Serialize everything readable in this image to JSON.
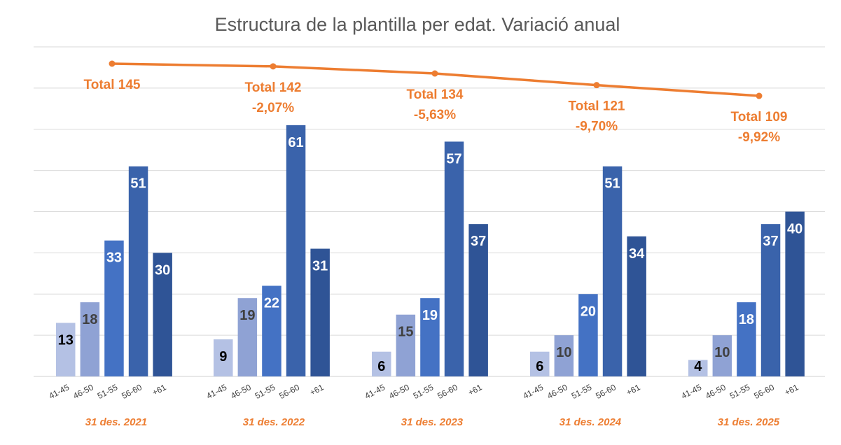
{
  "chart_data": {
    "type": "bar",
    "title": "Estructura de la plantilla per edat. Variació anual",
    "groups": [
      "31 des. 2021",
      "31 des. 2022",
      "31 des. 2023",
      "31 des. 2024",
      "31 des. 2025"
    ],
    "categories": [
      "41-45",
      "46-50",
      "51-55",
      "56-60",
      "+61"
    ],
    "values": [
      [
        13,
        18,
        33,
        51,
        30
      ],
      [
        9,
        19,
        22,
        61,
        31
      ],
      [
        6,
        15,
        19,
        57,
        37
      ],
      [
        6,
        10,
        20,
        51,
        34
      ],
      [
        4,
        10,
        18,
        37,
        40
      ]
    ],
    "ylim": [
      0,
      80
    ],
    "grid": true,
    "y_axis_labels_shown": false,
    "totals_line": {
      "type": "line",
      "values": [
        145,
        142,
        134,
        121,
        109
      ],
      "labels": [
        "Total 145",
        "Total 142",
        "Total 134",
        "Total 121",
        "Total 109"
      ],
      "variation_labels": [
        "",
        "-2,07%",
        "-5,63%",
        "-9,70%",
        "-9,92%"
      ],
      "axis": "secondary"
    },
    "colors": {
      "categories": [
        "#b4c1e4",
        "#8fa2d4",
        "#4472c4",
        "#3a63ab",
        "#2f5496"
      ],
      "label_text": [
        "#000000",
        "#404040",
        "#ffffff",
        "#ffffff",
        "#ffffff"
      ],
      "line": "#ed7d31",
      "title": "#595959",
      "grid": "#d9d9d9"
    }
  }
}
